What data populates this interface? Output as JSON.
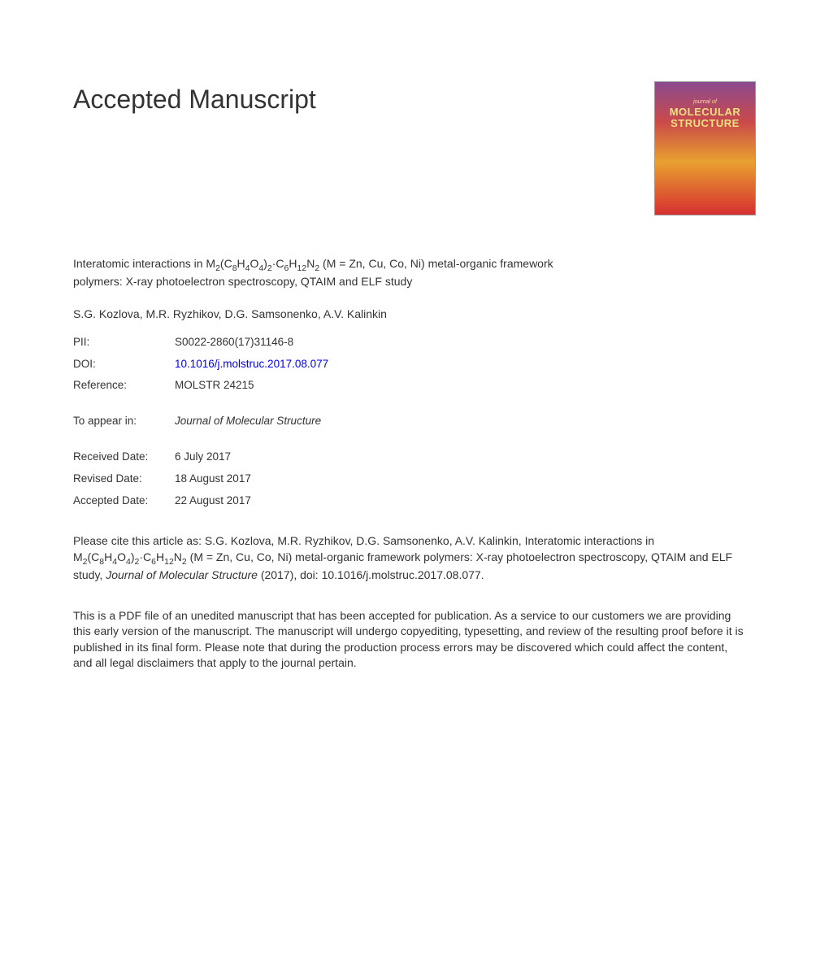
{
  "heading": "Accepted Manuscript",
  "cover": {
    "subtitle": "journal of",
    "title_line1": "MOLECULAR",
    "title_line2": "STRUCTURE"
  },
  "title": {
    "pre": "Interatomic interactions in M",
    "sub1": "2",
    "mid1": "(C",
    "sub2": "8",
    "mid2": "H",
    "sub3": "4",
    "mid3": "O",
    "sub4": "4",
    "mid4": ")",
    "sub5": "2",
    "mid5": "·C",
    "sub6": "6",
    "mid6": "H",
    "sub7": "12",
    "mid7": "N",
    "sub8": "2",
    "post": " (M = Zn, Cu, Co, Ni) metal-organic framework polymers: X-ray photoelectron spectroscopy, QTAIM and ELF study"
  },
  "authors": "S.G. Kozlova, M.R. Ryzhikov, D.G. Samsonenko, A.V. Kalinkin",
  "metadata": {
    "pii_label": "PII:",
    "pii_value": "S0022-2860(17)31146-8",
    "doi_label": "DOI:",
    "doi_value": "10.1016/j.molstruc.2017.08.077",
    "reference_label": "Reference:",
    "reference_value": "MOLSTR 24215",
    "appear_label": "To appear in:",
    "appear_value": "Journal of Molecular Structure",
    "received_label": "Received Date:",
    "received_value": "6 July 2017",
    "revised_label": "Revised Date:",
    "revised_value": "18 August 2017",
    "accepted_label": "Accepted Date:",
    "accepted_value": "22 August 2017"
  },
  "citation": {
    "pre": "Please cite this article as: S.G. Kozlova, M.R. Ryzhikov, D.G. Samsonenko, A.V. Kalinkin, Interatomic interactions in M",
    "sub1": "2",
    "mid1": "(C",
    "sub2": "8",
    "mid2": "H",
    "sub3": "4",
    "mid3": "O",
    "sub4": "4",
    "mid4": ")",
    "sub5": "2",
    "mid5": "·C",
    "sub6": "6",
    "mid6": "H",
    "sub7": "12",
    "mid7": "N",
    "sub8": "2",
    "post1": " (M = Zn, Cu, Co, Ni) metal-organic framework polymers: X-ray photoelectron spectroscopy, QTAIM and ELF study, ",
    "journal": "Journal of Molecular Structure",
    "post2": " (2017), doi: 10.1016/j.molstruc.2017.08.077."
  },
  "disclaimer": "This is a PDF file of an unedited manuscript that has been accepted for publication. As a service to our customers we are providing this early version of the manuscript. The manuscript will undergo copyediting, typesetting, and review of the resulting proof before it is published in its final form. Please note that during the production process errors may be discovered which could affect the content, and all legal disclaimers that apply to the journal pertain."
}
